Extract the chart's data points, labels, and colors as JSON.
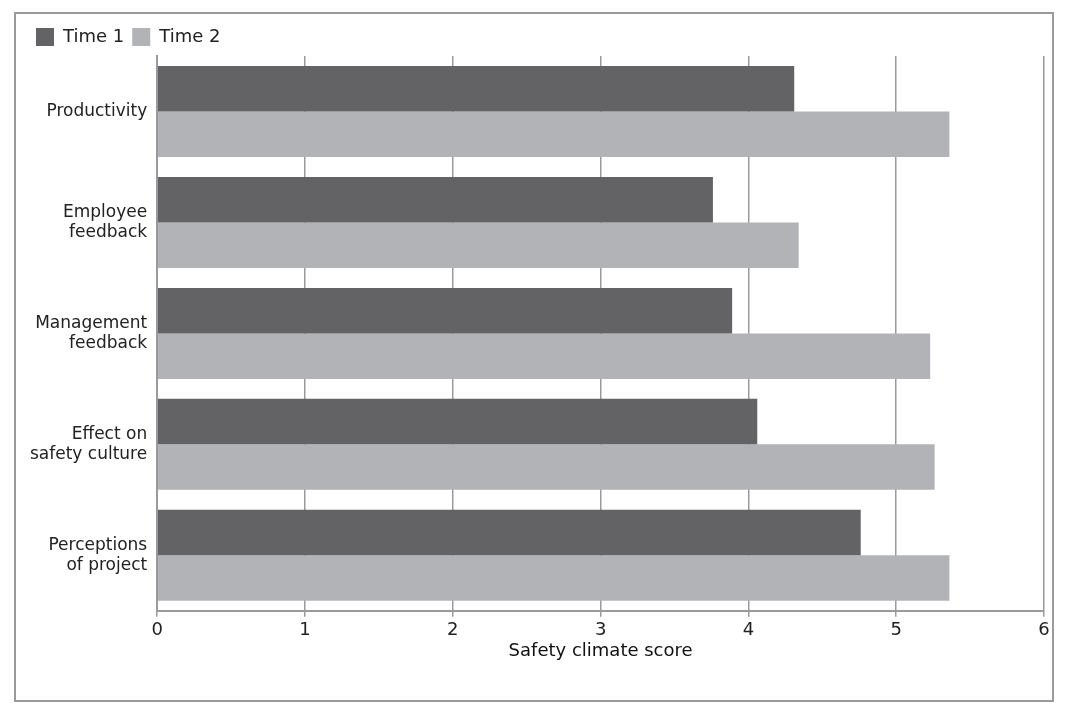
{
  "chart_data": {
    "type": "bar",
    "orientation": "horizontal",
    "xlabel": "Safety climate score",
    "categories": [
      "Productivity",
      "Employee feedback",
      "Management feedback",
      "Effect on safety culture",
      "Perceptions of project"
    ],
    "series": [
      {
        "name": "Time 1",
        "color": "#636365",
        "values": [
          4.31,
          3.76,
          3.89,
          4.06,
          4.76
        ]
      },
      {
        "name": "Time 2",
        "color": "#b2b3b6",
        "values": [
          5.36,
          4.34,
          5.23,
          5.26,
          5.36
        ]
      }
    ],
    "xlim": [
      0,
      6
    ],
    "xticks": [
      0,
      1,
      2,
      3,
      4,
      5,
      6
    ],
    "grid": "x",
    "legend": "top left"
  }
}
